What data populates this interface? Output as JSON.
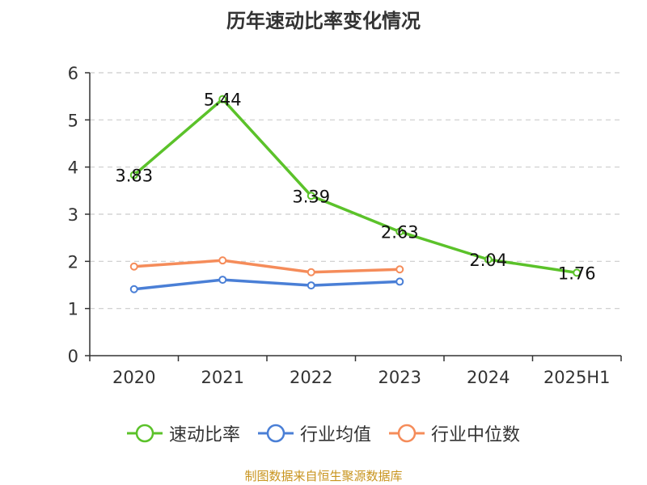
{
  "chart_data": {
    "type": "line",
    "title": "历年速动比率变化情况",
    "categories": [
      "2020",
      "2021",
      "2022",
      "2023",
      "2024",
      "2025H1"
    ],
    "ylim": [
      0,
      6
    ],
    "yticks": [
      "0",
      "1",
      "2",
      "3",
      "4",
      "5",
      "6"
    ],
    "grid": true,
    "legend_position": "bottom",
    "series": [
      {
        "name": "速动比率",
        "color": "#5bc22a",
        "values": [
          3.83,
          5.44,
          3.39,
          2.63,
          2.04,
          1.76
        ],
        "labels": [
          "3.83",
          "5.44",
          "3.39",
          "2.63",
          "2.04",
          "1.76"
        ]
      },
      {
        "name": "行业均值",
        "color": "#4a7fd6",
        "values": [
          1.41,
          1.61,
          1.49,
          1.57,
          null,
          null
        ]
      },
      {
        "name": "行业中位数",
        "color": "#f58c5a",
        "values": [
          1.89,
          2.02,
          1.77,
          1.83,
          null,
          null
        ]
      }
    ]
  },
  "source": "制图数据来自恒生聚源数据库"
}
